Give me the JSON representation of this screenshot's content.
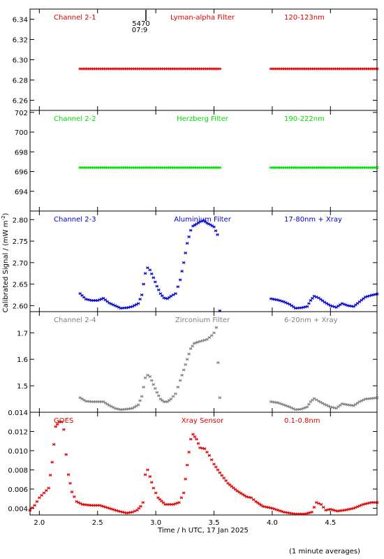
{
  "figure": {
    "xlabel": "Time / h UTC, 17 Jan 2025",
    "ylabel": "Calibrated Signal / (mW m",
    "ylabel_sup": "-2",
    "ylabel_end": ")",
    "footnote": "(1 minute averages)",
    "x_ticks": [
      2.0,
      2.5,
      3.0,
      3.5,
      4.0,
      4.5
    ],
    "x_tick_labels": [
      "2.0",
      "2.5",
      "3.0",
      "3.5",
      "4.0",
      "4.5"
    ],
    "xlim": [
      1.92,
      4.9
    ],
    "marker_label_1": "5470",
    "marker_label_2": "07:9"
  },
  "chart_data": [
    {
      "type": "scatter",
      "channel": "Channel 2-1",
      "filter": "Lyman-alpha Filter",
      "band": "120-123nm",
      "color": "#dd0000",
      "ylim": [
        6.25,
        6.35
      ],
      "y_ticks": [
        6.26,
        6.28,
        6.3,
        6.32,
        6.34
      ],
      "y_tick_labels": [
        "6.26",
        "6.28",
        "6.30",
        "6.32",
        "6.34"
      ],
      "series": [
        {
          "x": [
            2.35,
            3.55
          ],
          "y": [
            6.291,
            6.291
          ]
        },
        {
          "x": [
            3.99,
            4.9
          ],
          "y": [
            6.291,
            6.291
          ]
        }
      ]
    },
    {
      "type": "scatter",
      "channel": "Channel 2-2",
      "filter": "Herzberg Filter",
      "band": "190-222nm",
      "color": "#00dd00",
      "ylim": [
        692.0,
        702.2
      ],
      "y_ticks": [
        694,
        696,
        698,
        700,
        702
      ],
      "y_tick_labels": [
        "694",
        "696",
        "698",
        "700",
        "702"
      ],
      "series": [
        {
          "x": [
            2.35,
            3.55
          ],
          "y": [
            696.4,
            696.4
          ]
        },
        {
          "x": [
            3.99,
            4.9
          ],
          "y": [
            696.4,
            696.4
          ]
        }
      ]
    },
    {
      "type": "scatter",
      "channel": "Channel 2-3",
      "filter": "Aluminium Filter",
      "band": "17-80nm + Xray",
      "color": "#0000cc",
      "ylim": [
        2.586,
        2.82
      ],
      "y_ticks": [
        2.6,
        2.65,
        2.7,
        2.75,
        2.8
      ],
      "y_tick_labels": [
        "2.60",
        "2.65",
        "2.70",
        "2.75",
        "2.80"
      ],
      "series": [
        {
          "x": [
            2.35,
            2.4,
            2.45,
            2.5,
            2.55,
            2.6,
            2.65,
            2.7,
            2.75,
            2.8,
            2.85,
            2.88,
            2.91,
            2.93,
            2.95,
            2.98,
            3.01,
            3.04,
            3.07,
            3.1,
            3.13,
            3.17,
            3.21,
            3.24,
            3.27,
            3.3,
            3.32,
            3.35,
            3.38,
            3.41,
            3.44,
            3.47,
            3.5,
            3.53,
            3.55
          ],
          "y": [
            2.628,
            2.615,
            2.612,
            2.612,
            2.617,
            2.606,
            2.6,
            2.594,
            2.595,
            2.598,
            2.605,
            2.625,
            2.675,
            2.688,
            2.683,
            2.665,
            2.645,
            2.628,
            2.618,
            2.616,
            2.622,
            2.628,
            2.66,
            2.7,
            2.745,
            2.775,
            2.785,
            2.79,
            2.795,
            2.798,
            2.792,
            2.788,
            2.783,
            2.765,
            2.588
          ]
        },
        {
          "x": [
            3.99,
            4.05,
            4.1,
            4.15,
            4.2,
            4.25,
            4.3,
            4.33,
            4.36,
            4.4,
            4.45,
            4.5,
            4.55,
            4.6,
            4.65,
            4.7,
            4.75,
            4.8,
            4.85,
            4.9
          ],
          "y": [
            2.616,
            2.613,
            2.609,
            2.603,
            2.594,
            2.595,
            2.598,
            2.612,
            2.622,
            2.618,
            2.608,
            2.6,
            2.596,
            2.605,
            2.6,
            2.598,
            2.609,
            2.62,
            2.624,
            2.627
          ]
        }
      ]
    },
    {
      "type": "scatter",
      "channel": "Channel 2-4",
      "filter": "Zirconium Filter",
      "band": "6-20nm + Xray",
      "color": "#808080",
      "ylim": [
        1.4,
        1.78
      ],
      "y_ticks": [
        1.5,
        1.6,
        1.7
      ],
      "y_tick_labels": [
        "1.5",
        "1.6",
        "1.7"
      ],
      "series": [
        {
          "x": [
            2.35,
            2.4,
            2.45,
            2.5,
            2.55,
            2.6,
            2.65,
            2.7,
            2.75,
            2.8,
            2.85,
            2.88,
            2.91,
            2.93,
            2.95,
            2.98,
            3.01,
            3.04,
            3.07,
            3.1,
            3.13,
            3.17,
            3.21,
            3.24,
            3.27,
            3.3,
            3.33,
            3.36,
            3.4,
            3.44,
            3.48,
            3.5,
            3.52,
            3.55
          ],
          "y": [
            1.455,
            1.442,
            1.44,
            1.44,
            1.44,
            1.426,
            1.415,
            1.41,
            1.412,
            1.415,
            1.428,
            1.46,
            1.53,
            1.54,
            1.535,
            1.505,
            1.475,
            1.45,
            1.44,
            1.44,
            1.45,
            1.47,
            1.52,
            1.56,
            1.6,
            1.64,
            1.66,
            1.665,
            1.67,
            1.675,
            1.69,
            1.7,
            1.72,
            1.455
          ]
        },
        {
          "x": [
            3.99,
            4.05,
            4.1,
            4.15,
            4.2,
            4.25,
            4.3,
            4.33,
            4.36,
            4.4,
            4.45,
            4.5,
            4.55,
            4.6,
            4.65,
            4.7,
            4.75,
            4.8,
            4.85,
            4.9
          ],
          "y": [
            1.44,
            1.436,
            1.428,
            1.42,
            1.41,
            1.412,
            1.42,
            1.44,
            1.452,
            1.442,
            1.43,
            1.42,
            1.415,
            1.432,
            1.428,
            1.425,
            1.44,
            1.45,
            1.452,
            1.455
          ]
        }
      ]
    },
    {
      "type": "scatter",
      "channel": "GOES",
      "filter": "Xray Sensor",
      "band": "0.1-0.8nm",
      "color": "#dd0000",
      "ylim": [
        0.0033,
        0.014
      ],
      "y_ticks": [
        0.004,
        0.006,
        0.008,
        0.01,
        0.012,
        0.014
      ],
      "y_tick_labels": [
        "0.004",
        "0.006",
        "0.008",
        "0.010",
        "0.012",
        "0.014"
      ],
      "series": [
        {
          "x": [
            1.92,
            1.96,
            2.0,
            2.04,
            2.08,
            2.11,
            2.14,
            2.17,
            2.19,
            2.21,
            2.23,
            2.25,
            2.28,
            2.32,
            2.37,
            2.45,
            2.52,
            2.6,
            2.68,
            2.75,
            2.8,
            2.84,
            2.87,
            2.89,
            2.91,
            2.93,
            2.95,
            2.98,
            3.02,
            3.08,
            3.15,
            3.2,
            3.24,
            3.27,
            3.3,
            3.32,
            3.35,
            3.38,
            3.42,
            3.46,
            3.5,
            3.55,
            3.62,
            3.7,
            3.78,
            3.82,
            3.86,
            3.92,
            4.0,
            4.1,
            4.2,
            4.28,
            4.34,
            4.38,
            4.42,
            4.46,
            4.5,
            4.56,
            4.62,
            4.7,
            4.78,
            4.85,
            4.9
          ],
          "y": [
            0.0038,
            0.0043,
            0.0051,
            0.0056,
            0.0061,
            0.0088,
            0.0125,
            0.013,
            0.013,
            0.0122,
            0.0096,
            0.0075,
            0.0057,
            0.0047,
            0.0044,
            0.0043,
            0.0043,
            0.004,
            0.0037,
            0.0035,
            0.0036,
            0.0038,
            0.0042,
            0.0046,
            0.0075,
            0.008,
            0.0073,
            0.0061,
            0.0051,
            0.0044,
            0.0044,
            0.0046,
            0.0056,
            0.0085,
            0.0112,
            0.0117,
            0.0112,
            0.0103,
            0.0102,
            0.0095,
            0.0086,
            0.0077,
            0.0066,
            0.0058,
            0.0052,
            0.0051,
            0.0047,
            0.0042,
            0.004,
            0.0036,
            0.0034,
            0.0034,
            0.0036,
            0.0046,
            0.0044,
            0.0038,
            0.0039,
            0.0037,
            0.0038,
            0.004,
            0.0044,
            0.0046,
            0.0046
          ]
        }
      ]
    }
  ]
}
